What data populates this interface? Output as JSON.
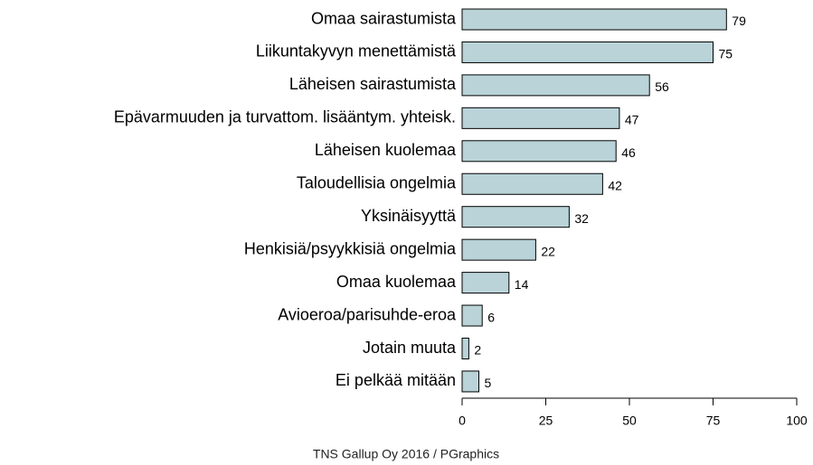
{
  "chart_data": {
    "type": "bar",
    "orientation": "horizontal",
    "categories": [
      "Omaa sairastumista",
      "Liikuntakyvyn menettämistä",
      "Läheisen sairastumista",
      "Epävarmuuden ja turvattom. lisääntym. yhteisk.",
      "Läheisen kuolemaa",
      "Taloudellisia ongelmia",
      "Yksinäisyyttä",
      "Henkisiä/psyykkisiä ongelmia",
      "Omaa kuolemaa",
      "Avioeroa/parisuhde-eroa",
      "Jotain muuta",
      "Ei pelkää mitään"
    ],
    "values": [
      79,
      75,
      56,
      47,
      46,
      42,
      32,
      22,
      14,
      6,
      2,
      5
    ],
    "color": "#b9d3d8",
    "xlim": [
      0,
      100
    ],
    "xticks": [
      0,
      25,
      50,
      75,
      100
    ],
    "footer": "TNS Gallup Oy 2016 / PGraphics"
  }
}
